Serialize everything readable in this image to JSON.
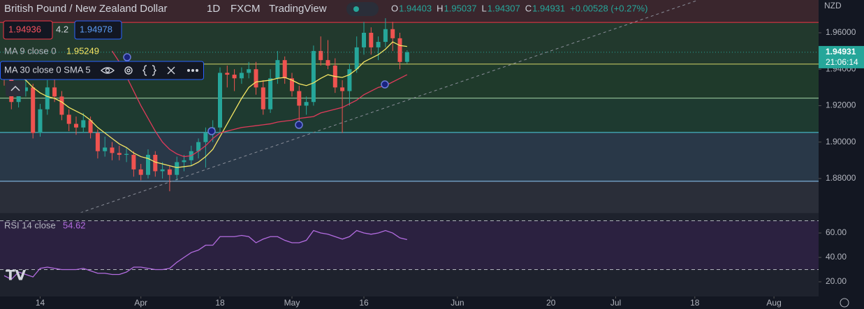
{
  "header": {
    "symbol": "British Pound / New Zealand Dollar",
    "interval": "1D",
    "source": "FXCM",
    "platform": "TradingView",
    "ohlc_labels": [
      "O",
      "H",
      "L",
      "C"
    ],
    "change": "+0.00528 (+0.27%)"
  },
  "trade": {
    "sell": "1.94936",
    "spread": "4.2",
    "buy": "1.94978"
  },
  "indicators": {
    "ma9": "MA 9 close 0",
    "ma30": "MA 30 close 0 SMA 5",
    "rsi": "RSI 14 close"
  },
  "chart_data": {
    "type": "candlestick",
    "currency": "NZD",
    "countdown": "21:06:14",
    "ylim": [
      1.8612,
      1.978
    ],
    "yticks": [
      {
        "value": 1.96,
        "label": "1.96000"
      },
      {
        "value": 1.94,
        "label": "1.94000"
      },
      {
        "value": 1.92,
        "label": "1.92000"
      },
      {
        "value": 1.9,
        "label": "1.90000"
      },
      {
        "value": 1.88,
        "label": "1.88000"
      }
    ],
    "xticks": [
      {
        "value": 5,
        "label": "14"
      },
      {
        "value": 19,
        "label": "Apr"
      },
      {
        "value": 30,
        "label": "18"
      },
      {
        "value": 40,
        "label": "May"
      },
      {
        "value": 50,
        "label": "16"
      },
      {
        "value": 63,
        "label": "Jun"
      },
      {
        "value": 76,
        "label": "20"
      },
      {
        "value": 85,
        "label": "Jul"
      },
      {
        "value": 96,
        "label": "18"
      },
      {
        "value": 107,
        "label": "Aug"
      }
    ],
    "up_color": "#26a69a",
    "down_color": "#ef5350",
    "candles": [
      [
        1.94,
        1.944,
        1.931,
        1.935
      ],
      [
        1.935,
        1.938,
        1.918,
        1.922
      ],
      [
        1.922,
        1.932,
        1.919,
        1.928
      ],
      [
        1.928,
        1.936,
        1.925,
        1.93
      ],
      [
        1.93,
        1.932,
        1.902,
        1.905
      ],
      [
        1.905,
        1.921,
        1.903,
        1.918
      ],
      [
        1.918,
        1.934,
        1.915,
        1.93
      ],
      [
        1.93,
        1.94,
        1.922,
        1.925
      ],
      [
        1.925,
        1.928,
        1.912,
        1.915
      ],
      [
        1.915,
        1.918,
        1.906,
        1.91
      ],
      [
        1.91,
        1.914,
        1.904,
        1.908
      ],
      [
        1.908,
        1.916,
        1.905,
        1.912
      ],
      [
        1.912,
        1.914,
        1.902,
        1.905
      ],
      [
        1.905,
        1.907,
        1.891,
        1.895
      ],
      [
        1.895,
        1.903,
        1.892,
        1.897
      ],
      [
        1.897,
        1.9,
        1.89,
        1.894
      ],
      [
        1.894,
        1.898,
        1.89,
        1.893
      ],
      [
        1.893,
        1.897,
        1.889,
        1.8935
      ],
      [
        1.893,
        1.895,
        1.881,
        1.885
      ],
      [
        1.885,
        1.888,
        1.879,
        1.882
      ],
      [
        1.882,
        1.896,
        1.88,
        1.893
      ],
      [
        1.893,
        1.895,
        1.881,
        1.884
      ],
      [
        1.884,
        1.889,
        1.88,
        1.885
      ],
      [
        1.885,
        1.887,
        1.873,
        1.882
      ],
      [
        1.882,
        1.892,
        1.879,
        1.889
      ],
      [
        1.889,
        1.893,
        1.884,
        1.89
      ],
      [
        1.89,
        1.898,
        1.887,
        1.895
      ],
      [
        1.895,
        1.902,
        1.891,
        1.9
      ],
      [
        1.9,
        1.908,
        1.886,
        1.905
      ],
      [
        1.905,
        1.912,
        1.9,
        1.908
      ],
      [
        1.908,
        1.941,
        1.905,
        1.938
      ],
      [
        1.938,
        1.942,
        1.93,
        1.937
      ],
      [
        1.937,
        1.94,
        1.928,
        1.935
      ],
      [
        1.935,
        1.941,
        1.932,
        1.938
      ],
      [
        1.938,
        1.944,
        1.935,
        1.94
      ],
      [
        1.94,
        1.944,
        1.926,
        1.93
      ],
      [
        1.93,
        1.934,
        1.915,
        1.918
      ],
      [
        1.918,
        1.94,
        1.916,
        1.935
      ],
      [
        1.935,
        1.95,
        1.932,
        1.945
      ],
      [
        1.945,
        1.947,
        1.932,
        1.935
      ],
      [
        1.935,
        1.938,
        1.925,
        1.928
      ],
      [
        1.928,
        1.931,
        1.909,
        1.92
      ],
      [
        1.92,
        1.925,
        1.915,
        1.922
      ],
      [
        1.922,
        1.953,
        1.92,
        1.95
      ],
      [
        1.95,
        1.958,
        1.942,
        1.945
      ],
      [
        1.945,
        1.956,
        1.94,
        1.942
      ],
      [
        1.942,
        1.946,
        1.927,
        1.93
      ],
      [
        1.93,
        1.934,
        1.905,
        1.928
      ],
      [
        1.928,
        1.943,
        1.92,
        1.94
      ],
      [
        1.94,
        1.958,
        1.938,
        1.952
      ],
      [
        1.952,
        1.966,
        1.948,
        1.96
      ],
      [
        1.96,
        1.963,
        1.948,
        1.952
      ],
      [
        1.952,
        1.958,
        1.945,
        1.955
      ],
      [
        1.955,
        1.968,
        1.952,
        1.962
      ],
      [
        1.962,
        1.966,
        1.95,
        1.957
      ],
      [
        1.957,
        1.96,
        1.94,
        1.944
      ],
      [
        1.94403,
        1.95037,
        1.94307,
        1.94931
      ]
    ],
    "ma9": {
      "color": "#f5e663",
      "values": [
        1.94,
        1.938,
        1.936,
        1.934,
        1.93,
        1.927,
        1.925,
        1.924,
        1.922,
        1.919,
        1.917,
        1.915,
        1.912,
        1.908,
        1.905,
        1.902,
        1.899,
        1.897,
        1.894,
        1.892,
        1.891,
        1.889,
        1.888,
        1.887,
        1.886,
        1.8865,
        1.887,
        1.889,
        1.892,
        1.896,
        1.903,
        1.91,
        1.917,
        1.924,
        1.93,
        1.933,
        1.9335,
        1.934,
        1.935,
        1.9355,
        1.934,
        1.932,
        1.931,
        1.9325,
        1.935,
        1.937,
        1.936,
        1.9355,
        1.937,
        1.94,
        1.944,
        1.946,
        1.948,
        1.951,
        1.955,
        1.953,
        1.95249
      ]
    },
    "ma30": {
      "color": "#e03a5a",
      "values": [
        null,
        null,
        null,
        null,
        null,
        null,
        null,
        null,
        null,
        null,
        null,
        null,
        null,
        null,
        null,
        1.95,
        1.944,
        1.936,
        1.928,
        1.92,
        1.913,
        1.906,
        1.9,
        1.896,
        1.8935,
        1.892,
        1.8925,
        1.895,
        1.898,
        1.902,
        1.905,
        1.906,
        1.907,
        1.908,
        1.9085,
        1.909,
        1.9095,
        1.91,
        1.911,
        1.9115,
        1.912,
        1.913,
        1.9135,
        1.914,
        1.916,
        1.917,
        1.918,
        1.919,
        1.921,
        1.923,
        1.926,
        1.928,
        1.93,
        1.931,
        1.933,
        1.935,
        1.937
      ]
    },
    "levels": [
      {
        "value": 1.9657,
        "color": "#f23645"
      },
      {
        "value": 1.9428,
        "color": "#d4d46a"
      },
      {
        "value": 1.9241,
        "color": "#a5d6a7"
      },
      {
        "value": 1.9053,
        "color": "#4dd0e1"
      },
      {
        "value": 1.8785,
        "color": "#90caf9"
      }
    ],
    "band_colors": [
      "#3a262d",
      "#22392d",
      "#1f3a2b",
      "#1e3a30",
      "#293848",
      "#2a2e39"
    ],
    "rsi": {
      "color": "#b36ce0",
      "ylim": [
        8,
        76.6
      ],
      "yticks": [
        {
          "value": 60,
          "label": "60.00"
        },
        {
          "value": 40,
          "label": "40.00"
        },
        {
          "value": 20,
          "label": "20.00"
        }
      ],
      "levels": [
        70,
        30
      ],
      "values": [
        25,
        22,
        28,
        26,
        24,
        31,
        32,
        31,
        30,
        30,
        30,
        31,
        29,
        27,
        27,
        26,
        26,
        28,
        32,
        32,
        31,
        30,
        30,
        31,
        36,
        40,
        44,
        46,
        50,
        50,
        57,
        57,
        57,
        58,
        57,
        52,
        55,
        57,
        57,
        54,
        52,
        52,
        54,
        62,
        60,
        59,
        57,
        55,
        57,
        62,
        60,
        59,
        60,
        62,
        60,
        56,
        54.62
      ]
    }
  }
}
